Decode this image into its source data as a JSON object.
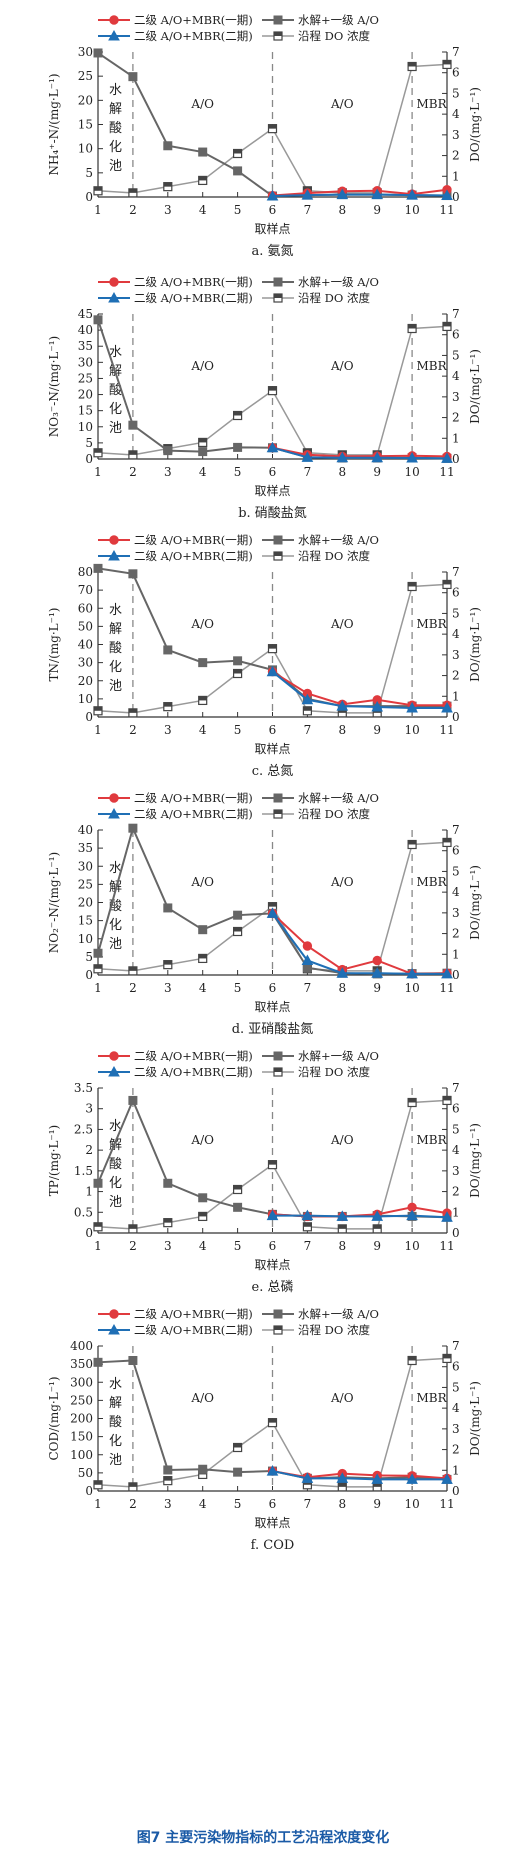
{
  "legend": {
    "s1": "二级 A/O+MBR(一期)",
    "s2": "水解+一级 A/O",
    "s3": "二级 A/O+MBR(二期)",
    "s4": "沿程 DO 浓度"
  },
  "regions": {
    "hydrolysis": [
      "水",
      "解",
      "酸",
      "化",
      "池"
    ],
    "ao1": "A/O",
    "ao2": "A/O",
    "mbr": "MBR"
  },
  "xlabel": "取样点",
  "right_ylabel": "DO/(mg·L⁻¹)",
  "figure_caption": "图7  主要污染物指标的工艺沿程浓度变化",
  "colors": {
    "s1": "#e03a3e",
    "s2": "#666666",
    "s3": "#1f6fb5",
    "s4": "#999999"
  },
  "chart_data": [
    {
      "type": "line",
      "caption": "a. 氨氮",
      "ylabel": "NH₄⁺-N/(mg·L⁻¹)",
      "x": [
        1,
        2,
        3,
        4,
        5,
        6,
        7,
        8,
        9,
        10,
        11
      ],
      "xticks": [
        1,
        2,
        3,
        4,
        5,
        6,
        7,
        8,
        9,
        10,
        11
      ],
      "ylim": [
        0,
        30
      ],
      "yticks": [
        0,
        5,
        10,
        15,
        20,
        25,
        30
      ],
      "y2lim": [
        0,
        7
      ],
      "y2ticks": [
        0,
        1,
        2,
        3,
        4,
        5,
        6,
        7
      ],
      "dividers": [
        2,
        6,
        10
      ],
      "series": [
        {
          "name": "二级 A/O+MBR(一期)",
          "x": [
            6,
            7,
            8,
            9,
            10,
            11
          ],
          "values": [
            0.3,
            0.8,
            1.2,
            1.3,
            0.6,
            1.5
          ]
        },
        {
          "name": "水解+一级 A/O",
          "x": [
            1,
            2,
            3,
            4,
            5,
            6,
            7,
            8,
            9,
            10,
            11
          ],
          "values": [
            29.8,
            24.9,
            10.6,
            9.3,
            5.4,
            0.2,
            0.4,
            0.5,
            0.5,
            0.4,
            0.3
          ]
        },
        {
          "name": "二级 A/O+MBR(二期)",
          "x": [
            6,
            7,
            8,
            9,
            10,
            11
          ],
          "values": [
            0.2,
            0.4,
            0.5,
            0.5,
            0.4,
            0.3
          ]
        },
        {
          "name": "沿程 DO 浓度",
          "axis": "right",
          "x": [
            1,
            2,
            3,
            4,
            5,
            6,
            7,
            8,
            9,
            10,
            11
          ],
          "values": [
            0.3,
            0.2,
            0.5,
            0.8,
            2.1,
            3.3,
            0.3,
            0.2,
            0.2,
            6.3,
            6.4
          ]
        }
      ]
    },
    {
      "type": "line",
      "caption": "b. 硝酸盐氮",
      "ylabel": "NO₃⁻-N/(mg·L⁻¹)",
      "x": [
        1,
        2,
        3,
        4,
        5,
        6,
        7,
        8,
        9,
        10,
        11
      ],
      "xticks": [
        1,
        2,
        3,
        4,
        5,
        6,
        7,
        8,
        9,
        10,
        11
      ],
      "ylim": [
        0,
        45
      ],
      "yticks": [
        0,
        5,
        10,
        15,
        20,
        25,
        30,
        35,
        40,
        45
      ],
      "y2lim": [
        0,
        7
      ],
      "y2ticks": [
        0,
        1,
        2,
        3,
        4,
        5,
        6,
        7
      ],
      "dividers": [
        2,
        6,
        10
      ],
      "series": [
        {
          "name": "二级 A/O+MBR(一期)",
          "x": [
            6,
            7,
            8,
            9,
            10,
            11
          ],
          "values": [
            3.5,
            1.3,
            0.8,
            0.9,
            1.0,
            0.8
          ]
        },
        {
          "name": "水解+一级 A/O",
          "x": [
            1,
            2,
            3,
            4,
            5,
            6,
            7,
            8,
            9,
            10,
            11
          ],
          "values": [
            43.2,
            10.5,
            2.6,
            2.3,
            3.6,
            3.5,
            0.6,
            0.3,
            0.3,
            0.4,
            0.2
          ]
        },
        {
          "name": "二级 A/O+MBR(二期)",
          "x": [
            6,
            7,
            8,
            9,
            10,
            11
          ],
          "values": [
            3.5,
            0.5,
            0.4,
            0.4,
            0.3,
            0.2
          ]
        },
        {
          "name": "沿程 DO 浓度",
          "axis": "right",
          "x": [
            1,
            2,
            3,
            4,
            5,
            6,
            7,
            8,
            9,
            10,
            11
          ],
          "values": [
            0.3,
            0.2,
            0.5,
            0.8,
            2.1,
            3.3,
            0.3,
            0.2,
            0.2,
            6.3,
            6.4
          ]
        }
      ]
    },
    {
      "type": "line",
      "caption": "c. 总氮",
      "ylabel": "TN/(mg·L⁻¹)",
      "x": [
        1,
        2,
        3,
        4,
        5,
        6,
        7,
        8,
        9,
        10,
        11
      ],
      "xticks": [
        1,
        2,
        3,
        4,
        5,
        6,
        7,
        8,
        9,
        10,
        11
      ],
      "ylim": [
        0,
        80
      ],
      "yticks": [
        0,
        10,
        20,
        30,
        40,
        50,
        60,
        70,
        80
      ],
      "y2lim": [
        0,
        7
      ],
      "y2ticks": [
        0,
        1,
        2,
        3,
        4,
        5,
        6,
        7
      ],
      "dividers": [
        2,
        6,
        10
      ],
      "series": [
        {
          "name": "二级 A/O+MBR(一期)",
          "x": [
            6,
            7,
            8,
            9,
            10,
            11
          ],
          "values": [
            25,
            13,
            7,
            9.5,
            6.5,
            6.5
          ]
        },
        {
          "name": "水解+一级 A/O",
          "x": [
            1,
            2,
            3,
            4,
            5,
            6,
            7,
            8,
            9,
            10,
            11
          ],
          "values": [
            82,
            79,
            37,
            30,
            31,
            26,
            10,
            6,
            6,
            6,
            6
          ]
        },
        {
          "name": "二级 A/O+MBR(二期)",
          "x": [
            6,
            7,
            8,
            9,
            10,
            11
          ],
          "values": [
            25,
            9.5,
            6,
            5.5,
            5,
            5
          ]
        },
        {
          "name": "沿程 DO 浓度",
          "axis": "right",
          "x": [
            1,
            2,
            3,
            4,
            5,
            6,
            7,
            8,
            9,
            10,
            11
          ],
          "values": [
            0.3,
            0.2,
            0.5,
            0.8,
            2.1,
            3.3,
            0.3,
            0.2,
            0.2,
            6.3,
            6.4
          ]
        }
      ]
    },
    {
      "type": "line",
      "caption": "d. 亚硝酸盐氮",
      "ylabel": "NO₂⁻-N/(mg·L⁻¹)",
      "x": [
        1,
        2,
        3,
        4,
        5,
        6,
        7,
        8,
        9,
        10,
        11
      ],
      "xticks": [
        1,
        2,
        3,
        4,
        5,
        6,
        7,
        8,
        9,
        10,
        11
      ],
      "ylim": [
        0,
        40
      ],
      "yticks": [
        0,
        5,
        10,
        15,
        20,
        25,
        30,
        35,
        40
      ],
      "y2lim": [
        0,
        7
      ],
      "y2ticks": [
        0,
        1,
        2,
        3,
        4,
        5,
        6,
        7
      ],
      "dividers": [
        2,
        6,
        10
      ],
      "series": [
        {
          "name": "二级 A/O+MBR(一期)",
          "x": [
            6,
            7,
            8,
            9,
            10,
            11
          ],
          "values": [
            17,
            8,
            1.5,
            4,
            0.3,
            0.5
          ]
        },
        {
          "name": "水解+一级 A/O",
          "x": [
            1,
            2,
            3,
            4,
            5,
            6,
            7,
            8,
            9,
            10,
            11
          ],
          "values": [
            6,
            40.5,
            18.5,
            12.5,
            16.5,
            17,
            2,
            0.5,
            0.3,
            0.4,
            0.5
          ]
        },
        {
          "name": "二级 A/O+MBR(二期)",
          "x": [
            6,
            7,
            8,
            9,
            10,
            11
          ],
          "values": [
            17,
            4,
            0.5,
            0.5,
            0.3,
            0.3
          ]
        },
        {
          "name": "沿程 DO 浓度",
          "axis": "right",
          "x": [
            1,
            2,
            3,
            4,
            5,
            6,
            7,
            8,
            9,
            10,
            11
          ],
          "values": [
            0.3,
            0.2,
            0.5,
            0.8,
            2.1,
            3.3,
            0.3,
            0.2,
            0.2,
            6.3,
            6.4
          ]
        }
      ]
    },
    {
      "type": "line",
      "caption": "e. 总磷",
      "ylabel": "TP/(mg·L⁻¹)",
      "x": [
        1,
        2,
        3,
        4,
        5,
        6,
        7,
        8,
        9,
        10,
        11
      ],
      "xticks": [
        1,
        2,
        3,
        4,
        5,
        6,
        7,
        8,
        9,
        10,
        11
      ],
      "ylim": [
        0,
        3.5
      ],
      "yticks": [
        0,
        0.5,
        1.0,
        1.5,
        2.0,
        2.5,
        3.0,
        3.5
      ],
      "y2lim": [
        0,
        7
      ],
      "y2ticks": [
        0,
        1,
        2,
        3,
        4,
        5,
        6,
        7
      ],
      "dividers": [
        2,
        6,
        10
      ],
      "series": [
        {
          "name": "二级 A/O+MBR(一期)",
          "x": [
            6,
            7,
            8,
            9,
            10,
            11
          ],
          "values": [
            0.45,
            0.4,
            0.4,
            0.45,
            0.62,
            0.48
          ]
        },
        {
          "name": "水解+一级 A/O",
          "x": [
            1,
            2,
            3,
            4,
            5,
            6,
            7,
            8,
            9,
            10,
            11
          ],
          "values": [
            1.2,
            3.2,
            1.2,
            0.85,
            0.62,
            0.45,
            0.4,
            0.4,
            0.42,
            0.4,
            0.38
          ]
        },
        {
          "name": "二级 A/O+MBR(二期)",
          "x": [
            6,
            7,
            8,
            9,
            10,
            11
          ],
          "values": [
            0.42,
            0.42,
            0.4,
            0.4,
            0.42,
            0.38
          ]
        },
        {
          "name": "沿程 DO 浓度",
          "axis": "right",
          "x": [
            1,
            2,
            3,
            4,
            5,
            6,
            7,
            8,
            9,
            10,
            11
          ],
          "values": [
            0.3,
            0.2,
            0.5,
            0.8,
            2.1,
            3.3,
            0.3,
            0.2,
            0.2,
            6.3,
            6.4
          ]
        }
      ]
    },
    {
      "type": "line",
      "caption": "f. COD",
      "ylabel": "COD/(mg·L⁻¹)",
      "x": [
        1,
        2,
        3,
        4,
        5,
        6,
        7,
        8,
        9,
        10,
        11
      ],
      "xticks": [
        1,
        2,
        3,
        4,
        5,
        6,
        7,
        8,
        9,
        10,
        11
      ],
      "ylim": [
        0,
        400
      ],
      "yticks": [
        0,
        50,
        100,
        150,
        200,
        250,
        300,
        350,
        400
      ],
      "y2lim": [
        0,
        7
      ],
      "y2ticks": [
        0,
        1,
        2,
        3,
        4,
        5,
        6,
        7
      ],
      "dividers": [
        2,
        6,
        10
      ],
      "series": [
        {
          "name": "二级 A/O+MBR(一期)",
          "x": [
            6,
            7,
            8,
            9,
            10,
            11
          ],
          "values": [
            55,
            38,
            48,
            43,
            42,
            35
          ]
        },
        {
          "name": "水解+一级 A/O",
          "x": [
            1,
            2,
            3,
            4,
            5,
            6,
            7,
            8,
            9,
            10,
            11
          ],
          "values": [
            355,
            360,
            58,
            60,
            52,
            55,
            35,
            38,
            35,
            38,
            32
          ]
        },
        {
          "name": "二级 A/O+MBR(二期)",
          "x": [
            6,
            7,
            8,
            9,
            10,
            11
          ],
          "values": [
            55,
            35,
            35,
            32,
            32,
            32
          ]
        },
        {
          "name": "沿程 DO 浓度",
          "axis": "right",
          "x": [
            1,
            2,
            3,
            4,
            5,
            6,
            7,
            8,
            9,
            10,
            11
          ],
          "values": [
            0.3,
            0.2,
            0.5,
            0.8,
            2.1,
            3.3,
            0.3,
            0.2,
            0.2,
            6.3,
            6.4
          ]
        }
      ]
    }
  ]
}
